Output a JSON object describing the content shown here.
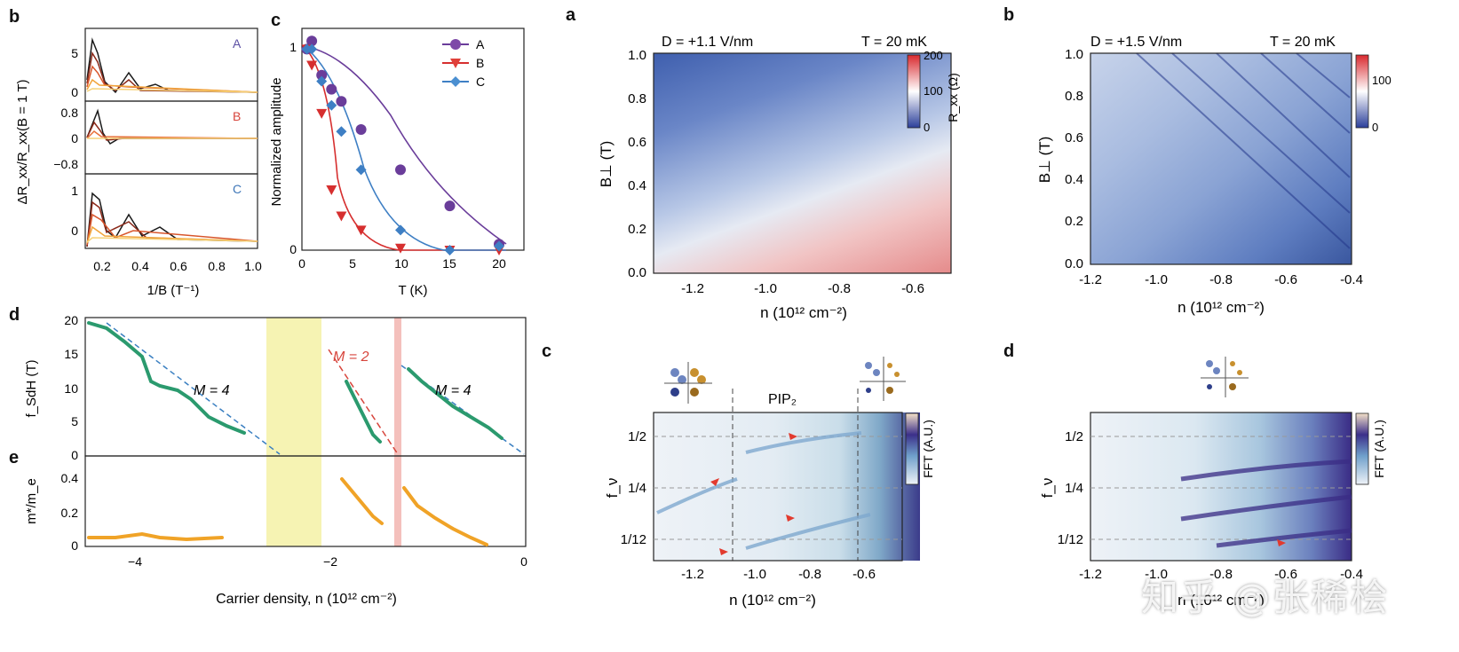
{
  "left_figure": {
    "panel_b": {
      "label": "b",
      "ylabel": "ΔR_xx/R_xx(B = 1 T)",
      "xlabel": "1/B (T⁻¹)",
      "xticks": [
        "0.2",
        "0.4",
        "0.6",
        "0.8",
        "1.0"
      ],
      "sub": [
        {
          "tag": "A",
          "color": "#5b4ea3",
          "yticks": [
            "5",
            "0"
          ]
        },
        {
          "tag": "B",
          "color": "#d7453c",
          "yticks": [
            "0.8",
            "0",
            "−0.8"
          ]
        },
        {
          "tag": "C",
          "color": "#3f77b8",
          "yticks": [
            "1",
            "0"
          ]
        }
      ]
    },
    "panel_c": {
      "label": "c",
      "ylabel": "Normalized amplitude",
      "xlabel": "T (K)",
      "xticks": [
        "0",
        "5",
        "10",
        "15",
        "20"
      ],
      "yticks": [
        "0",
        "1"
      ],
      "legend": [
        "A",
        "B",
        "C"
      ]
    },
    "panel_d": {
      "label": "d",
      "ylabel": "f_SdH (T)",
      "yticks": [
        "20",
        "15",
        "10",
        "5",
        "0"
      ],
      "annotations": [
        "M = 4",
        "M = 2",
        "M = 4"
      ]
    },
    "panel_e": {
      "label": "e",
      "ylabel": "m*/m_e",
      "yticks": [
        "0.4",
        "0.2",
        "0"
      ],
      "xticks": [
        "−4",
        "−2",
        "0"
      ],
      "xlabel": "Carrier density, n (10¹² cm⁻²)"
    }
  },
  "right_figure": {
    "panel_a": {
      "label": "a",
      "D": "D = +1.1 V/nm",
      "T": "T = 20 mK",
      "ylabel": "B⊥ (T)",
      "yticks": [
        "1.0",
        "0.8",
        "0.6",
        "0.4",
        "0.2",
        "0.0"
      ],
      "xticks": [
        "-1.2",
        "-1.0",
        "-0.8",
        "-0.6"
      ],
      "xlabel": "n (10¹² cm⁻²)",
      "colorbar": {
        "ticks": [
          "200",
          "100",
          "0"
        ],
        "label": "R_xx (Ω)"
      }
    },
    "panel_b": {
      "label": "b",
      "D": "D = +1.5 V/nm",
      "T": "T = 20 mK",
      "ylabel": "B⊥ (T)",
      "yticks": [
        "1.0",
        "0.8",
        "0.6",
        "0.4",
        "0.2",
        "0.0"
      ],
      "xticks": [
        "-1.2",
        "-1.0",
        "-0.8",
        "-0.6",
        "-0.4"
      ],
      "xlabel": "n (10¹² cm⁻²)",
      "colorbar": {
        "ticks": [
          "100",
          "0"
        ]
      }
    },
    "panel_c": {
      "label": "c",
      "region": "PIP₂",
      "ylabel": "f_ν",
      "yticks": [
        "1/2",
        "1/4",
        "1/12"
      ],
      "xticks": [
        "-1.2",
        "-1.0",
        "-0.8",
        "-0.6"
      ],
      "xlabel": "n (10¹² cm⁻²)",
      "colorbar": {
        "label": "FFT (A.U.)"
      }
    },
    "panel_d": {
      "label": "d",
      "ylabel": "f_ν",
      "yticks": [
        "1/2",
        "1/4",
        "1/12"
      ],
      "xticks": [
        "-1.2",
        "-1.0",
        "-0.8",
        "-0.6",
        "-0.4"
      ],
      "xlabel": "n (10¹² cm⁻²)",
      "colorbar": {
        "label": "FFT (A.U.)"
      }
    }
  },
  "watermark": "知乎 @张稀桧",
  "chart_data": [
    {
      "type": "scatter",
      "xlabel": "T (K)",
      "ylabel": "Normalized amplitude",
      "xlim": [
        0,
        20
      ],
      "ylim": [
        0,
        1.05
      ],
      "series": [
        {
          "name": "A",
          "color": "#6a3d9a",
          "x": [
            0.5,
            1,
            2,
            3,
            4,
            6,
            10,
            15,
            20
          ],
          "y": [
            1.0,
            1.04,
            0.87,
            0.8,
            0.74,
            0.6,
            0.4,
            0.22,
            0.03
          ]
        },
        {
          "name": "B",
          "color": "#d62f2f",
          "x": [
            0.5,
            1,
            2,
            3,
            4,
            6,
            10,
            15,
            20
          ],
          "y": [
            1.0,
            0.92,
            0.68,
            0.3,
            0.17,
            0.1,
            0.01,
            0.0,
            0.0
          ]
        },
        {
          "name": "C",
          "color": "#3e7fc4",
          "x": [
            0.5,
            1,
            2,
            3,
            4,
            6,
            10,
            15,
            20
          ],
          "y": [
            1.0,
            1.0,
            0.84,
            0.72,
            0.59,
            0.4,
            0.1,
            0.0,
            0.02
          ]
        }
      ]
    }
  ]
}
